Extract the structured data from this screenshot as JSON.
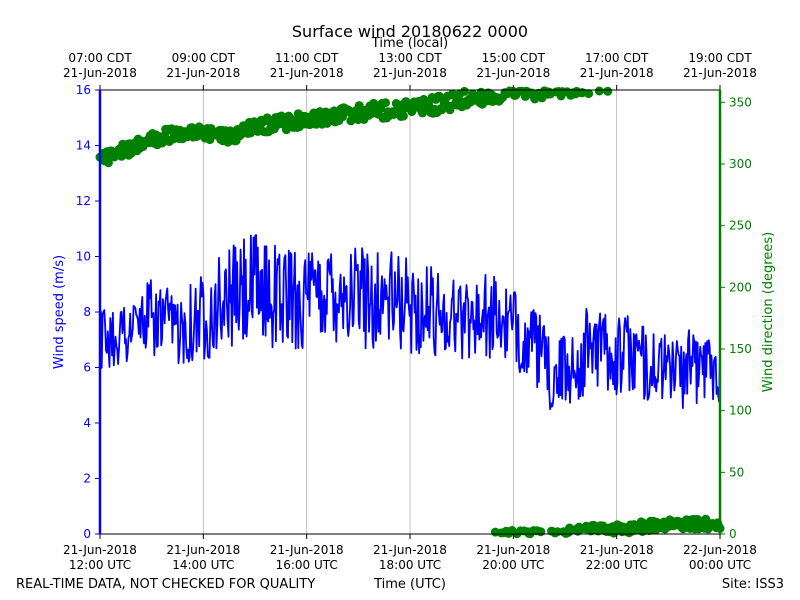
{
  "chart_data": {
    "type": "line",
    "title": "Surface wind 20180622 0000",
    "top_axis_label": "Time (local)",
    "xlabel": "Time (UTC)",
    "ylabel_left": "Wind speed (m/s)",
    "ylabel_right": "Wind direction (degrees)",
    "x_ticks_bottom": [
      {
        "hour": 12,
        "line1": "21-Jun-2018",
        "line2": "12:00 UTC"
      },
      {
        "hour": 14,
        "line1": "21-Jun-2018",
        "line2": "14:00 UTC"
      },
      {
        "hour": 16,
        "line1": "21-Jun-2018",
        "line2": "16:00 UTC"
      },
      {
        "hour": 18,
        "line1": "21-Jun-2018",
        "line2": "18:00 UTC"
      },
      {
        "hour": 20,
        "line1": "21-Jun-2018",
        "line2": "20:00 UTC"
      },
      {
        "hour": 22,
        "line1": "21-Jun-2018",
        "line2": "22:00 UTC"
      },
      {
        "hour": 24,
        "line1": "22-Jun-2018",
        "line2": "00:00 UTC"
      }
    ],
    "x_ticks_top": [
      {
        "hour": 12,
        "line1": "07:00 CDT",
        "line2": "21-Jun-2018"
      },
      {
        "hour": 14,
        "line1": "09:00 CDT",
        "line2": "21-Jun-2018"
      },
      {
        "hour": 16,
        "line1": "11:00 CDT",
        "line2": "21-Jun-2018"
      },
      {
        "hour": 18,
        "line1": "13:00 CDT",
        "line2": "21-Jun-2018"
      },
      {
        "hour": 20,
        "line1": "15:00 CDT",
        "line2": "21-Jun-2018"
      },
      {
        "hour": 22,
        "line1": "17:00 CDT",
        "line2": "21-Jun-2018"
      },
      {
        "hour": 24,
        "line1": "19:00 CDT",
        "line2": "21-Jun-2018"
      }
    ],
    "xlim_hours_utc": [
      12,
      24
    ],
    "ylim_left": [
      0,
      16
    ],
    "yticks_left": [
      0,
      2,
      4,
      6,
      8,
      10,
      12,
      14,
      16
    ],
    "ylim_right": [
      0,
      360
    ],
    "yticks_right": [
      0,
      50,
      100,
      150,
      200,
      250,
      300,
      350
    ],
    "grid": "vertical lines at x ticks",
    "colors": {
      "speed": "#0000ff",
      "direction": "#008000",
      "grid": "#b0b0b0",
      "axes": "#000000"
    },
    "series": [
      {
        "axis": "left",
        "style": "line",
        "color": "#0000ff",
        "x_hours_utc": [
          12.0,
          12.5,
          13.0,
          13.5,
          14.0,
          14.5,
          15.0,
          15.5,
          16.0,
          16.5,
          17.0,
          17.5,
          18.0,
          18.5,
          19.0,
          19.5,
          20.0,
          20.25,
          20.5,
          20.75,
          21.0,
          21.25,
          21.5,
          21.75,
          22.0,
          22.25,
          22.5,
          22.75,
          23.0,
          23.25,
          23.5,
          23.75,
          24.0
        ],
        "y": [
          7.0,
          7.3,
          7.8,
          7.4,
          7.9,
          8.5,
          8.8,
          8.6,
          8.4,
          8.9,
          8.6,
          8.5,
          8.2,
          8.0,
          7.8,
          7.9,
          7.4,
          7.0,
          6.6,
          5.5,
          5.9,
          6.1,
          6.9,
          6.7,
          6.4,
          6.5,
          6.2,
          6.0,
          6.0,
          5.9,
          6.0,
          6.1,
          6.0
        ],
        "amplitude_m_s": [
          0.8,
          0.9,
          1.0,
          0.9,
          1.2,
          1.3,
          1.5,
          1.4,
          1.3,
          1.4,
          1.4,
          1.3,
          1.2,
          1.2,
          1.1,
          1.1,
          1.0,
          1.0,
          1.0,
          0.9,
          1.0,
          1.1,
          1.1,
          1.0,
          1.1,
          1.0,
          1.0,
          0.9,
          0.9,
          1.0,
          1.0,
          0.9,
          0.9
        ]
      },
      {
        "axis": "right",
        "style": "dots",
        "color": "#008000",
        "note": "direction scatter; values near 360 degrees wrap to near 0 late in the period",
        "x_hours_utc": [
          12.0,
          12.5,
          13.0,
          13.5,
          14.0,
          14.5,
          15.0,
          15.5,
          16.0,
          16.5,
          17.0,
          17.5,
          18.0,
          18.5,
          19.0,
          19.5,
          20.0,
          20.5,
          21.0,
          21.5,
          22.0,
          22.5,
          23.0,
          23.5,
          24.0
        ],
        "y": [
          302,
          312,
          320,
          325,
          325,
          322,
          330,
          333,
          336,
          339,
          342,
          344,
          345,
          348,
          352,
          355,
          357,
          358,
          360,
          362,
          364,
          366,
          368,
          368,
          368
        ],
        "spread_deg": [
          6,
          6,
          6,
          6,
          5,
          5,
          6,
          6,
          6,
          6,
          7,
          7,
          7,
          7,
          7,
          6,
          6,
          5,
          5,
          5,
          4,
          4,
          4,
          4,
          4
        ]
      }
    ],
    "footer": {
      "left": "REAL-TIME DATA, NOT CHECKED FOR QUALITY",
      "center": "Time (UTC)",
      "right": "Site: ISS3"
    }
  }
}
